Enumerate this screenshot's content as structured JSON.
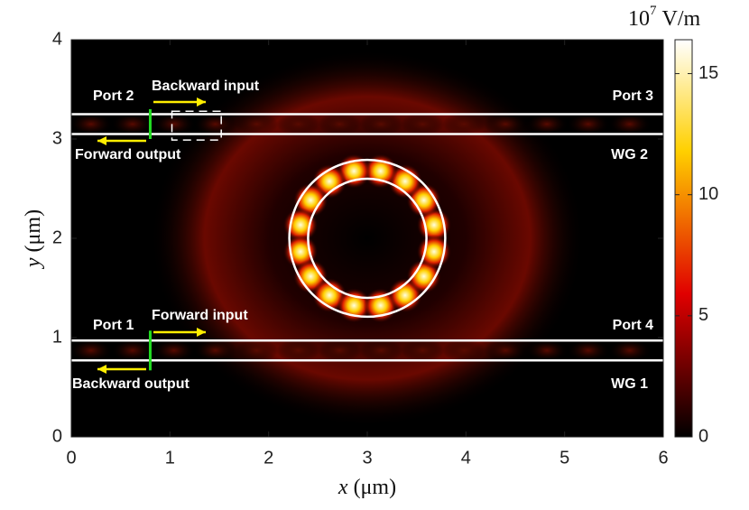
{
  "chart_data": {
    "type": "field",
    "xlabel": {
      "var": "x",
      "unit": "(μm)"
    },
    "ylabel": {
      "var": "y",
      "unit": "(μm)"
    },
    "xlim": [
      0,
      6
    ],
    "xticks": [
      0,
      1,
      2,
      3,
      4,
      5,
      6
    ],
    "ylim": [
      0,
      4
    ],
    "yticks": [
      0,
      1,
      2,
      3,
      4
    ],
    "colorbar": {
      "base": "10",
      "exponent": "7",
      "unit": "V/m",
      "lim": [
        0,
        16.4
      ],
      "ticks": [
        0,
        5,
        10,
        15
      ],
      "colormap": "hot"
    },
    "annotations": [
      "Port 2",
      "Backward input",
      "Forward output",
      "Port 3",
      "WG 2",
      "Port 1",
      "Forward input",
      "Backward output",
      "Port 4",
      "WG 1"
    ]
  }
}
